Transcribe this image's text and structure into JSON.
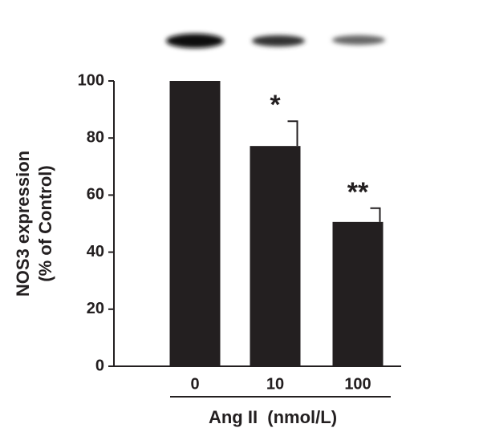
{
  "chart_data": {
    "type": "bar",
    "categories": [
      "0",
      "10",
      "100"
    ],
    "values": [
      100,
      77.2,
      50.6
    ],
    "errors": [
      null,
      8.7,
      4.8
    ],
    "annotations": [
      null,
      "*",
      "**"
    ],
    "color": "#231f20",
    "ylim": [
      0,
      100
    ],
    "yticks": [
      0,
      20,
      40,
      60,
      80,
      100
    ],
    "ylabel": [
      "NOS3 expression",
      "(% of Control)"
    ],
    "xlabel": "Ang II  (nmol/L)"
  }
}
